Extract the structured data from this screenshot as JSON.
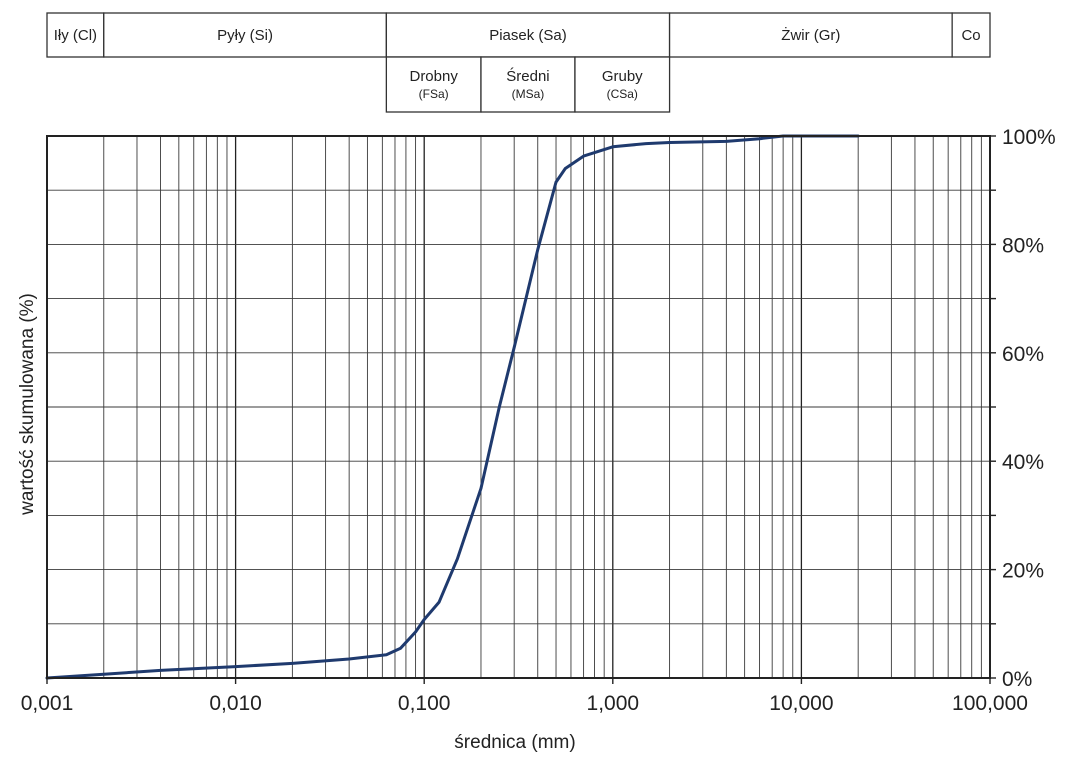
{
  "fraction_bands": [
    {
      "label": "Iły (Cl)",
      "from": 0.001,
      "to": 0.002
    },
    {
      "label": "Pyły (Si)",
      "from": 0.002,
      "to": 0.063
    },
    {
      "label": "Piasek (Sa)",
      "from": 0.063,
      "to": 2.0
    },
    {
      "label": "Żwir (Gr)",
      "from": 2.0,
      "to": 63.0
    },
    {
      "label": "Co",
      "from": 63.0,
      "to": 100.0
    }
  ],
  "sand_subfractions": [
    {
      "label": "Drobny",
      "code": "(FSa)",
      "from": 0.063,
      "to": 0.2
    },
    {
      "label": "Średni",
      "code": "(MSa)",
      "from": 0.2,
      "to": 0.63
    },
    {
      "label": "Gruby",
      "code": "(CSa)",
      "from": 0.63,
      "to": 2.0
    }
  ],
  "chart_data": {
    "type": "line",
    "title": "",
    "xlabel": "średnica (mm)",
    "ylabel": "wartość skumulowana (%)",
    "x_scale": "log",
    "xlim": [
      0.001,
      100
    ],
    "ylim": [
      0,
      100
    ],
    "grid": true,
    "x_tick_labels": [
      {
        "value": 0.001,
        "label": "0,001"
      },
      {
        "value": 0.01,
        "label": "0,010"
      },
      {
        "value": 0.1,
        "label": "0,100"
      },
      {
        "value": 1,
        "label": "1,000"
      },
      {
        "value": 10,
        "label": "10,000"
      },
      {
        "value": 100,
        "label": "100,000"
      }
    ],
    "y_tick_labels": [
      {
        "value": 0,
        "label": "0%"
      },
      {
        "value": 20,
        "label": "20%"
      },
      {
        "value": 40,
        "label": "40%"
      },
      {
        "value": 60,
        "label": "60%"
      },
      {
        "value": 80,
        "label": "80%"
      },
      {
        "value": 100,
        "label": "100%"
      }
    ],
    "series": [
      {
        "color": "#1f3a6e",
        "points": [
          [
            0.001,
            0.0
          ],
          [
            0.002,
            0.7
          ],
          [
            0.004,
            1.4
          ],
          [
            0.01,
            2.1
          ],
          [
            0.02,
            2.7
          ],
          [
            0.04,
            3.5
          ],
          [
            0.063,
            4.3
          ],
          [
            0.075,
            5.5
          ],
          [
            0.09,
            8.5
          ],
          [
            0.1,
            10.8
          ],
          [
            0.12,
            14.0
          ],
          [
            0.15,
            22.0
          ],
          [
            0.2,
            35.0
          ],
          [
            0.25,
            50.0
          ],
          [
            0.3,
            61.0
          ],
          [
            0.4,
            79.0
          ],
          [
            0.5,
            91.5
          ],
          [
            0.56,
            94.0
          ],
          [
            0.7,
            96.3
          ],
          [
            1.0,
            98.0
          ],
          [
            1.5,
            98.6
          ],
          [
            2.0,
            98.8
          ],
          [
            4.0,
            99.0
          ],
          [
            6.0,
            99.5
          ],
          [
            8.0,
            100.0
          ],
          [
            20.0,
            100.0
          ]
        ]
      }
    ]
  }
}
